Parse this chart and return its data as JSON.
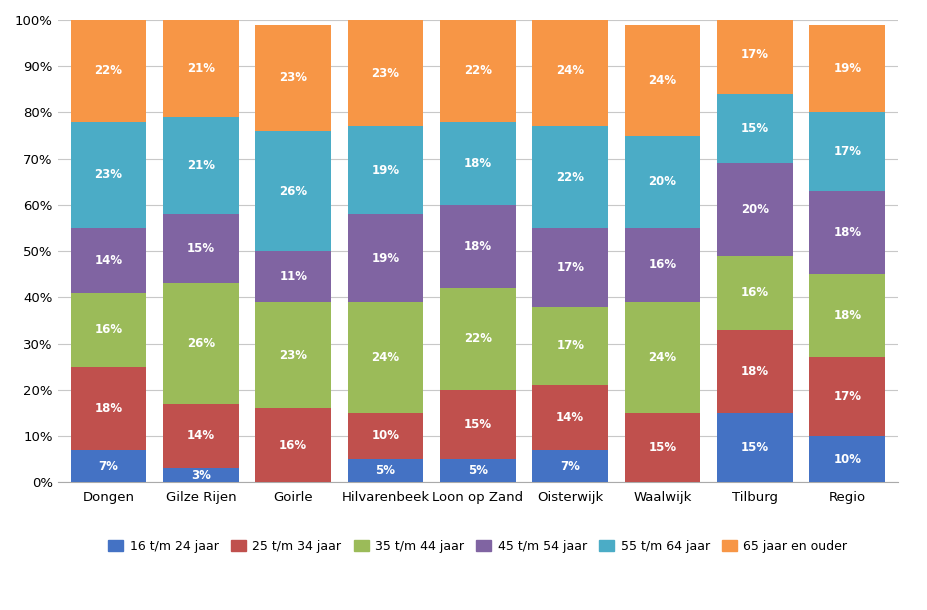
{
  "categories": [
    "Dongen",
    "Gilze Rijen",
    "Goirle",
    "Hilvarenbeek",
    "Loon op Zand",
    "Oisterwijk",
    "Waalwijk",
    "Tilburg",
    "Regio"
  ],
  "series": {
    "16 t/m 24 jaar": [
      7,
      3,
      0,
      5,
      5,
      7,
      0,
      15,
      10
    ],
    "25 t/m 34 jaar": [
      18,
      14,
      16,
      10,
      15,
      14,
      15,
      18,
      17
    ],
    "35 t/m 44 jaar": [
      16,
      26,
      23,
      24,
      22,
      17,
      24,
      16,
      18
    ],
    "45 t/m 54 jaar": [
      14,
      15,
      11,
      19,
      18,
      17,
      16,
      20,
      18
    ],
    "55 t/m 64 jaar": [
      23,
      21,
      26,
      19,
      18,
      22,
      20,
      15,
      17
    ],
    "65 jaar en ouder": [
      22,
      21,
      23,
      23,
      22,
      24,
      24,
      17,
      19
    ]
  },
  "colors": {
    "16 t/m 24 jaar": "#4472C4",
    "25 t/m 34 jaar": "#C0504D",
    "35 t/m 44 jaar": "#9BBB59",
    "45 t/m 54 jaar": "#8064A2",
    "55 t/m 64 jaar": "#4BACC6",
    "65 jaar en ouder": "#F79646"
  },
  "ylim": [
    0,
    100
  ],
  "yticks": [
    0,
    10,
    20,
    30,
    40,
    50,
    60,
    70,
    80,
    90,
    100
  ],
  "ytick_labels": [
    "0%",
    "10%",
    "20%",
    "30%",
    "40%",
    "50%",
    "60%",
    "70%",
    "80%",
    "90%",
    "100%"
  ],
  "bar_width": 0.82,
  "label_fontsize": 8.5,
  "legend_fontsize": 9.0,
  "tick_fontsize": 9.5,
  "background_color": "#FFFFFF",
  "grid_color": "#C8C8C8"
}
